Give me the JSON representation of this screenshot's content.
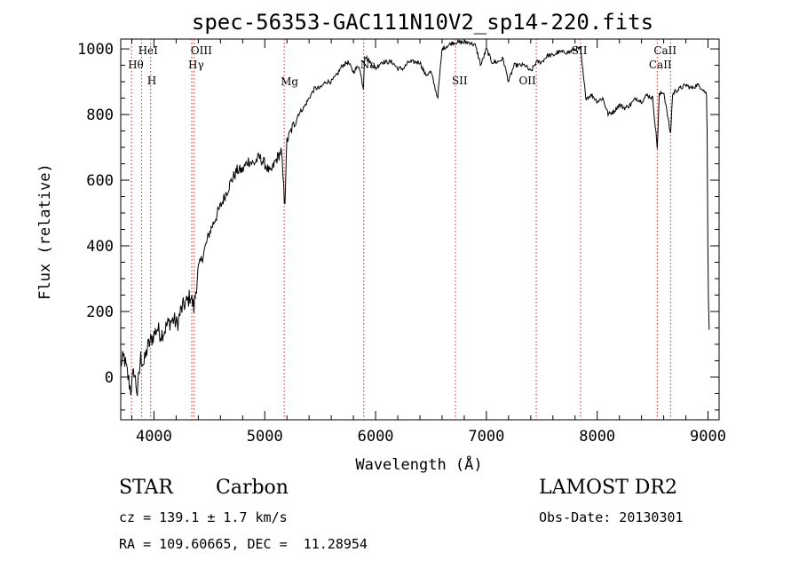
{
  "chart_data": {
    "type": "line",
    "title": "spec-56353-GAC111N10V2_sp14-220.fits",
    "xlabel": "Wavelength (Å)",
    "ylabel": "Flux (relative)",
    "xlim": [
      3700,
      9100
    ],
    "ylim": [
      -130,
      1030
    ],
    "xticks": [
      4000,
      5000,
      6000,
      7000,
      8000,
      9000
    ],
    "yticks": [
      0,
      200,
      400,
      600,
      800,
      1000
    ],
    "grid": false,
    "series": [
      {
        "x": [
          3700,
          3730,
          3760,
          3790,
          3820,
          3850,
          3880,
          3910,
          3940,
          3970,
          4000,
          4030,
          4060,
          4090,
          4120,
          4150,
          4180,
          4210,
          4240,
          4270,
          4300,
          4330,
          4360,
          4400,
          4450,
          4500,
          4550,
          4600,
          4650,
          4700,
          4750,
          4800,
          4850,
          4900,
          4950,
          5000,
          5050,
          5100,
          5150,
          5180,
          5200,
          5250,
          5300,
          5350,
          5400,
          5450,
          5500,
          5550,
          5600,
          5650,
          5700,
          5750,
          5800,
          5850,
          5890,
          5900,
          5950,
          6000,
          6050,
          6100,
          6150,
          6200,
          6250,
          6300,
          6350,
          6400,
          6450,
          6500,
          6560,
          6600,
          6650,
          6700,
          6750,
          6800,
          6850,
          6900,
          6950,
          7000,
          7050,
          7100,
          7150,
          7200,
          7250,
          7300,
          7350,
          7400,
          7450,
          7500,
          7550,
          7600,
          7650,
          7700,
          7750,
          7800,
          7850,
          7880,
          7900,
          7950,
          8000,
          8050,
          8100,
          8150,
          8200,
          8250,
          8300,
          8350,
          8400,
          8450,
          8500,
          8542,
          8560,
          8600,
          8662,
          8680,
          8700,
          8750,
          8800,
          8850,
          8900,
          8950,
          8990,
          9000,
          9010
        ],
        "y": [
          40,
          60,
          10,
          -40,
          20,
          -50,
          60,
          40,
          90,
          110,
          130,
          150,
          130,
          140,
          160,
          170,
          175,
          160,
          200,
          220,
          230,
          250,
          210,
          330,
          380,
          440,
          480,
          520,
          560,
          600,
          630,
          630,
          660,
          650,
          670,
          650,
          620,
          660,
          690,
          520,
          720,
          760,
          800,
          820,
          850,
          880,
          880,
          900,
          900,
          920,
          950,
          960,
          930,
          950,
          880,
          980,
          960,
          940,
          960,
          960,
          960,
          940,
          940,
          960,
          960,
          960,
          920,
          930,
          850,
          1000,
          1010,
          1020,
          1020,
          1020,
          1020,
          1010,
          950,
          1000,
          960,
          960,
          970,
          900,
          950,
          950,
          950,
          930,
          960,
          960,
          980,
          980,
          990,
          990,
          990,
          1000,
          1000,
          900,
          850,
          860,
          840,
          850,
          800,
          810,
          830,
          820,
          830,
          850,
          840,
          860,
          850,
          700,
          860,
          870,
          740,
          860,
          870,
          880,
          890,
          880,
          890,
          880,
          860,
          300,
          150
        ]
      }
    ],
    "annotations": [
      {
        "label": "HeI",
        "x": 3889,
        "level": 1
      },
      {
        "label": "Hθ",
        "x": 3797,
        "level": 2
      },
      {
        "label": "H",
        "x": 3970,
        "level": 3
      },
      {
        "label": "OIII",
        "x": 4363,
        "level": 1
      },
      {
        "label": "Hγ",
        "x": 4341,
        "level": 2
      },
      {
        "label": "Mg",
        "x": 5175,
        "level": 4
      },
      {
        "label": "Na",
        "x": 5893,
        "level": 2
      },
      {
        "label": "SII",
        "x": 6720,
        "level": 3
      },
      {
        "label": "OII",
        "x": 7325,
        "level": 3
      },
      {
        "label": "SII",
        "x": 7800,
        "level": 1
      },
      {
        "label": "CaII",
        "x": 8542,
        "level": 1
      },
      {
        "label": "CaII",
        "x": 8498,
        "level": 2
      }
    ],
    "line_markers": [
      3797,
      3889,
      3970,
      4341,
      4363,
      5175,
      5893,
      6720,
      7450,
      7850,
      8542,
      8662
    ]
  },
  "info": {
    "object_class": "STAR",
    "subclass": "Carbon",
    "survey": "LAMOST DR2",
    "cz": "cz = 139.1 ± 1.7 km/s",
    "obs_date": "Obs-Date: 20130301",
    "radec": "RA = 109.60665, DEC =  11.28954"
  }
}
